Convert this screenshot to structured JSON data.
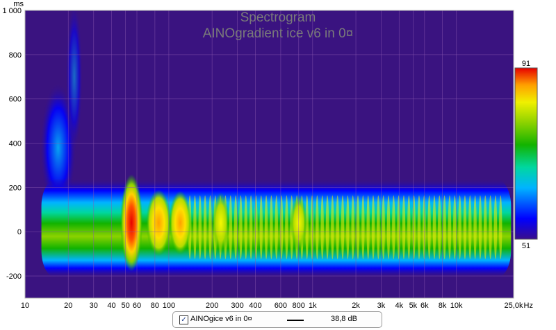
{
  "chart_data": {
    "type": "heatmap",
    "title": "Spectrogram",
    "subtitle": "AINOgradient ice v6 in 0¤",
    "xlabel": "Hz",
    "ylabel": "ms",
    "x_scale": "log",
    "xlim": [
      10,
      25000
    ],
    "ylim": [
      -300,
      1000
    ],
    "x_ticks": [
      10,
      20,
      30,
      40,
      50,
      60,
      80,
      100,
      200,
      300,
      400,
      600,
      800,
      1000,
      2000,
      3000,
      4000,
      5000,
      6000,
      8000,
      10000,
      25000
    ],
    "x_tick_labels": [
      "10",
      "20",
      "30",
      "40",
      "50",
      "60",
      "80",
      "100",
      "200",
      "300",
      "400",
      "600",
      "800",
      "1k",
      "2k",
      "3k",
      "4k",
      "5k",
      "6k",
      "8k",
      "10k",
      "25,0k"
    ],
    "y_ticks": [
      -200,
      0,
      200,
      400,
      600,
      800,
      1000
    ],
    "y_tick_labels": [
      "-200",
      "0",
      "200",
      "400",
      "600",
      "800",
      "1 000"
    ],
    "grid": true,
    "colorbar": {
      "min": 51,
      "max": 91,
      "min_label": "51",
      "max_label": "91",
      "colors": [
        "#3a0e8c",
        "#0000ff",
        "#00b4ff",
        "#00d7a0",
        "#12b300",
        "#8cd200",
        "#f0f000",
        "#ffa000",
        "#e60000"
      ]
    },
    "background_color": "#3a1380",
    "peak_band_ms": [
      -150,
      180
    ],
    "hotspots": [
      {
        "freq_hz": 55,
        "level_db": 91
      },
      {
        "freq_hz": 85,
        "level_db": 82
      },
      {
        "freq_hz": 120,
        "level_db": 80
      },
      {
        "freq_hz": 230,
        "level_db": 78
      },
      {
        "freq_hz": 800,
        "level_db": 76
      }
    ]
  },
  "legend": {
    "checked": true,
    "label": "AINOgice v6 in 0¤",
    "value": "38,8 dB"
  }
}
